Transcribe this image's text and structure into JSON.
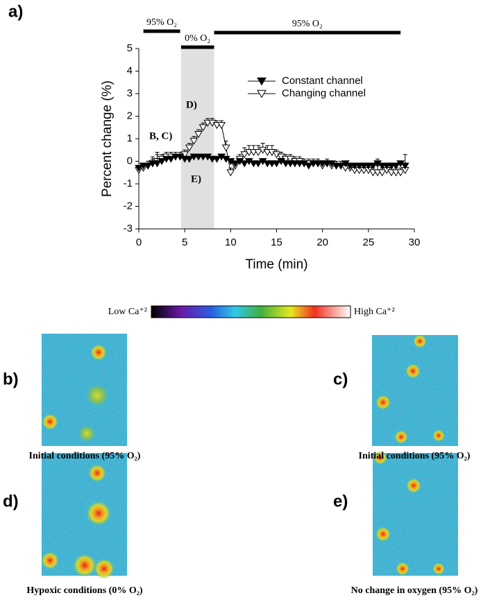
{
  "chart_data": {
    "type": "line",
    "panel_label": "a)",
    "x_label": "Time (min)",
    "y_label": "Percent change (%)",
    "x": [
      0,
      0.5,
      1,
      1.5,
      2,
      2.5,
      3,
      3.5,
      4,
      4.5,
      5,
      5.5,
      6,
      6.5,
      7,
      7.5,
      8,
      8.5,
      9,
      9.5,
      10,
      10.5,
      11,
      11.5,
      12,
      12.5,
      13,
      13.5,
      14,
      14.5,
      15,
      15.5,
      16,
      16.5,
      17,
      17.5,
      18,
      18.5,
      19,
      19.5,
      20,
      20.5,
      21,
      21.5,
      22,
      22.5,
      23,
      23.5,
      24,
      24.5,
      25,
      25.5,
      26,
      26.5,
      27,
      27.5,
      28,
      28.5,
      29
    ],
    "series": [
      {
        "name": "Constant channel",
        "color": "#000000",
        "marker": "filled",
        "values": [
          -0.3,
          -0.2,
          -0.2,
          -0.1,
          -0.1,
          0,
          0.1,
          0.1,
          0.2,
          0.2,
          0.1,
          0.1,
          0.2,
          0.2,
          0.2,
          0.2,
          0.1,
          0.1,
          0.2,
          0.1,
          0,
          -0.1,
          0,
          -0.1,
          0,
          -0.1,
          -0.1,
          0,
          -0.1,
          -0.1,
          -0.1,
          0,
          -0.1,
          -0.1,
          -0.1,
          -0.1,
          -0.1,
          -0.2,
          -0.1,
          -0.1,
          -0.1,
          -0.1,
          -0.1,
          -0.2,
          -0.2,
          -0.1,
          -0.2,
          -0.2,
          -0.2,
          -0.2,
          -0.2,
          -0.2,
          -0.1,
          -0.2,
          -0.2,
          -0.2,
          -0.2,
          -0.1,
          -0.2
        ],
        "errors": [
          0.1,
          0.1,
          0.1,
          0.2,
          0.4,
          0.1,
          0.1,
          0.1,
          0.1,
          0.1,
          0.1,
          0.1,
          0.1,
          0.1,
          0.1,
          0.1,
          0.1,
          0.1,
          0.1,
          0.1,
          0.1,
          0.1,
          0.1,
          0.1,
          0.1,
          0.1,
          0.1,
          0.1,
          0.1,
          0.1,
          0.1,
          0.1,
          0.1,
          0.1,
          0.1,
          0.1,
          0.1,
          0.1,
          0.1,
          0.1,
          0.1,
          0.1,
          0.1,
          0.1,
          0.1,
          0.1,
          0.1,
          0.1,
          0.1,
          0.1,
          0.1,
          0.1,
          0.2,
          0.1,
          0.1,
          0.1,
          0.1,
          0.1,
          0.5
        ]
      },
      {
        "name": "Changing channel",
        "color": "#000000",
        "marker": "open",
        "values": [
          -0.4,
          -0.3,
          -0.2,
          -0.1,
          0,
          0.1,
          0.2,
          0.2,
          0.2,
          0.2,
          0.3,
          0.6,
          0.9,
          1.2,
          1.5,
          1.7,
          1.7,
          1.6,
          1.6,
          0.6,
          -0.5,
          -0.2,
          0.1,
          0.3,
          0.4,
          0.4,
          0.4,
          0.5,
          0.4,
          0.4,
          0.3,
          0.2,
          0.1,
          0.1,
          0,
          0,
          -0.1,
          -0.1,
          -0.1,
          -0.1,
          -0.2,
          -0.1,
          -0.2,
          -0.2,
          -0.2,
          -0.3,
          -0.3,
          -0.4,
          -0.4,
          -0.4,
          -0.4,
          -0.5,
          -0.5,
          -0.5,
          -0.4,
          -0.5,
          -0.5,
          -0.5,
          -0.4
        ],
        "errors": [
          0.2,
          0.2,
          0.2,
          0.3,
          0.4,
          0.2,
          0.2,
          0.2,
          0.2,
          0.2,
          0.2,
          0.2,
          0.2,
          0.2,
          0.2,
          0.2,
          0.2,
          0.2,
          0.2,
          0.3,
          0.2,
          0.2,
          0.2,
          0.3,
          0.3,
          0.3,
          0.3,
          0.3,
          0.3,
          0.3,
          0.2,
          0.2,
          0.2,
          0.2,
          0.2,
          0.2,
          0.2,
          0.2,
          0.2,
          0.2,
          0.2,
          0.2,
          0.2,
          0.2,
          0.2,
          0.2,
          0.2,
          0.2,
          0.2,
          0.2,
          0.2,
          0.2,
          0.3,
          0.2,
          0.2,
          0.2,
          0.2,
          0.2,
          0.2
        ]
      }
    ],
    "xlim": [
      0,
      30
    ],
    "xticks": [
      0,
      5,
      10,
      15,
      20,
      25,
      30
    ],
    "ylim": [
      -3,
      5
    ],
    "yticks": [
      -3,
      -2,
      -1,
      0,
      1,
      2,
      3,
      4,
      5
    ],
    "legend": "upper right",
    "conditions": [
      {
        "label": "95% O₂",
        "x": [
          0.5,
          4.5
        ]
      },
      {
        "label": "0% O₂",
        "x": [
          4.6,
          8.2
        ]
      },
      {
        "label": "95% O₂",
        "x": [
          8.2,
          28.5
        ]
      }
    ],
    "shade_color": "#e0e0e0",
    "annotations": [
      "B, C)",
      "D)",
      "E)"
    ]
  },
  "colorbar": {
    "low": "Low Ca⁺²",
    "high": "High Ca⁺²"
  },
  "panels": [
    {
      "label": "b)",
      "caption": "Initial conditions (95% O₂)"
    },
    {
      "label": "c)",
      "caption": "Initial conditions (95% O₂)"
    },
    {
      "label": "d)",
      "caption": "Hypoxic conditions (0% O₂)"
    },
    {
      "label": "e)",
      "caption": "No change in oxygen (95% O₂)"
    }
  ]
}
